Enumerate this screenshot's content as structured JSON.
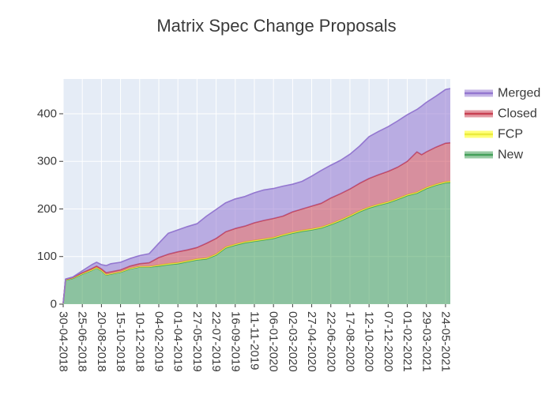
{
  "chart_data": {
    "type": "area",
    "stacked": true,
    "title": "Matrix Spec Change Proposals",
    "legend_position": "right-top",
    "grid": true,
    "plot_bg": "#e5ecf6",
    "grid_color": "#ffffff",
    "text_color": "#3a3a3a",
    "y_ticks": [
      0,
      100,
      200,
      300,
      400
    ],
    "y_range": [
      0,
      473
    ],
    "x_day_range": [
      0,
      1134
    ],
    "x_tick_step_days": 56,
    "x_tick_labels": [
      "30-04-2018",
      "25-06-2018",
      "20-08-2018",
      "15-10-2018",
      "10-12-2018",
      "04-02-2019",
      "01-04-2019",
      "27-05-2019",
      "22-07-2019",
      "16-09-2019",
      "11-11-2019",
      "06-01-2020",
      "02-03-2020",
      "27-04-2020",
      "22-06-2020",
      "17-08-2020",
      "12-10-2020",
      "07-12-2020",
      "01-02-2021",
      "29-03-2021",
      "24-05-2021"
    ],
    "x_days": [
      0,
      7,
      28,
      56,
      84,
      98,
      112,
      126,
      140,
      168,
      196,
      224,
      252,
      280,
      308,
      336,
      364,
      392,
      420,
      448,
      476,
      504,
      532,
      560,
      588,
      616,
      644,
      672,
      700,
      728,
      756,
      784,
      812,
      840,
      868,
      896,
      924,
      952,
      980,
      1008,
      1036,
      1050,
      1064,
      1092,
      1120,
      1134
    ],
    "series": [
      {
        "name": "New",
        "line_color": "#44a05a",
        "fill_color": "rgba(68,160,90,0.55)",
        "values": [
          2,
          50,
          54,
          63,
          71,
          76,
          70,
          61,
          63,
          67,
          74,
          78,
          78,
          80,
          83,
          85,
          89,
          93,
          95,
          103,
          118,
          124,
          129,
          132,
          135,
          138,
          144,
          149,
          153,
          156,
          160,
          167,
          175,
          184,
          194,
          202,
          208,
          213,
          220,
          228,
          233,
          238,
          243,
          250,
          255,
          256
        ]
      },
      {
        "name": "FCP",
        "line_color": "#ebeb3c",
        "fill_color": "rgba(255,255,60,0.7)",
        "values": [
          0,
          1,
          1,
          1,
          1,
          1,
          1,
          1,
          1,
          1,
          1,
          1,
          1,
          2,
          2,
          2,
          2,
          2,
          2,
          2,
          2,
          2,
          2,
          2,
          2,
          2,
          2,
          2,
          2,
          2,
          2,
          2,
          2,
          2,
          2,
          2,
          2,
          2,
          2,
          2,
          2,
          2,
          2,
          2,
          2,
          2
        ]
      },
      {
        "name": "Closed",
        "line_color": "#c84052",
        "fill_color": "rgba(204,68,85,0.55)",
        "values": [
          0,
          1,
          1,
          2,
          3,
          3,
          3,
          4,
          4,
          4,
          5,
          6,
          8,
          16,
          20,
          23,
          23,
          24,
          31,
          33,
          32,
          33,
          33,
          37,
          39,
          40,
          39,
          43,
          45,
          48,
          50,
          54,
          55,
          56,
          58,
          60,
          62,
          64,
          66,
          70,
          85,
          74,
          75,
          78,
          81,
          81
        ]
      },
      {
        "name": "Merged",
        "line_color": "#9377d0",
        "fill_color": "rgba(150,120,210,0.55)",
        "values": [
          0,
          1,
          1,
          4,
          8,
          8,
          9,
          15,
          17,
          16,
          16,
          17,
          19,
          30,
          44,
          46,
          49,
          50,
          57,
          61,
          61,
          62,
          62,
          63,
          64,
          63,
          63,
          58,
          58,
          63,
          69,
          69,
          70,
          73,
          78,
          88,
          91,
          94,
          97,
          98,
          89,
          102,
          104,
          107,
          113,
          114
        ]
      }
    ]
  }
}
